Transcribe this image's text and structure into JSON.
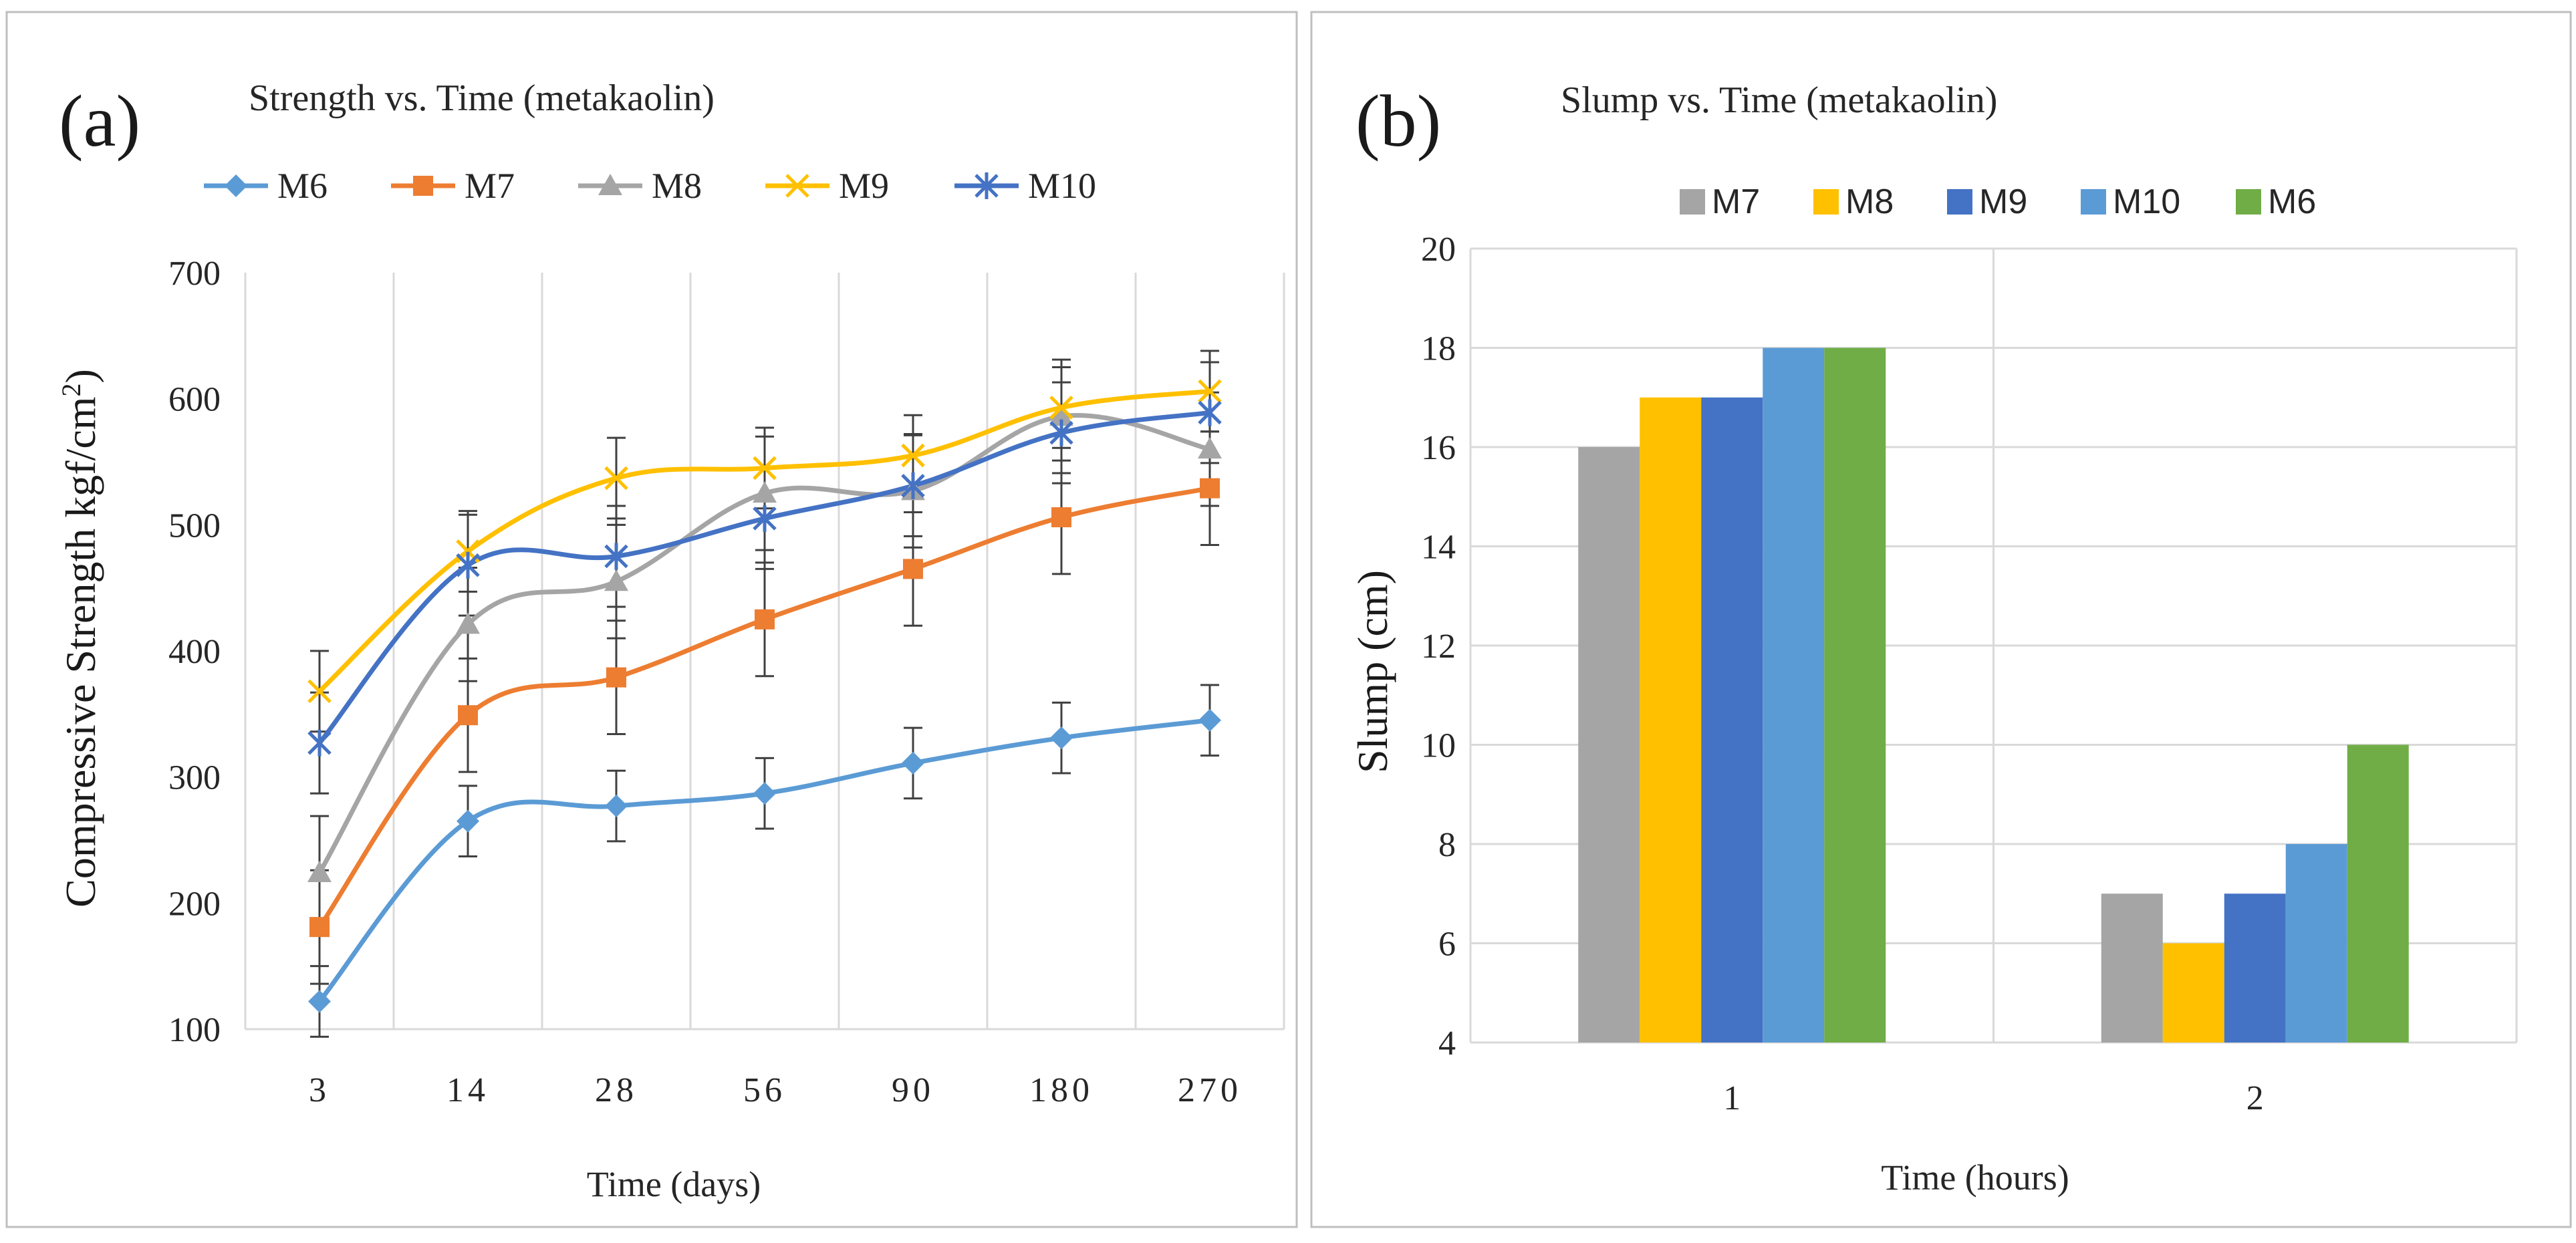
{
  "chart_data": [
    {
      "type": "line",
      "panel_label": "(a)",
      "title": "Strength vs. Time (metakaolin)",
      "xlabel": "Time  (days)",
      "ylabel_main": "Compressive Strength  kgf/cm",
      "ylabel_sup": "2",
      "ylabel_close": ")",
      "ylabel_open": "(",
      "categories": [
        "3",
        "14",
        "28",
        "56",
        "90",
        "180",
        "270"
      ],
      "ylim": [
        100,
        700
      ],
      "yticks": [
        "100",
        "200",
        "300",
        "400",
        "500",
        "600",
        "700"
      ],
      "grid": true,
      "legend": "top",
      "series": [
        {
          "name": "M6",
          "color": "#5b9bd5",
          "marker": "diamond",
          "values": [
            122,
            265,
            277,
            287,
            311,
            331,
            345
          ],
          "errors": [
            28,
            28,
            28,
            28,
            28,
            28,
            28
          ]
        },
        {
          "name": "M7",
          "color": "#ed7d31",
          "marker": "square",
          "values": [
            181,
            349,
            379,
            425,
            465,
            506,
            529
          ],
          "errors": [
            45,
            45,
            45,
            45,
            45,
            45,
            45
          ]
        },
        {
          "name": "M8",
          "color": "#a5a5a5",
          "marker": "triangle",
          "values": [
            224,
            421,
            455,
            525,
            527,
            586,
            560
          ],
          "errors": [
            45,
            45,
            45,
            45,
            45,
            45,
            45
          ]
        },
        {
          "name": "M9",
          "color": "#ffc000",
          "marker": "cross",
          "values": [
            368,
            479,
            537,
            545,
            555,
            593,
            606
          ],
          "errors": [
            32,
            32,
            32,
            32,
            32,
            32,
            32
          ]
        },
        {
          "name": "M10",
          "color": "#4472c4",
          "marker": "star",
          "values": [
            327,
            468,
            475,
            505,
            531,
            573,
            589
          ],
          "errors": [
            40,
            40,
            40,
            40,
            40,
            40,
            40
          ]
        }
      ]
    },
    {
      "type": "bar",
      "panel_label": "(b)",
      "title": "Slump vs. Time (metakaolin)",
      "xlabel": "Time  (hours)",
      "ylabel": "Slump (cm)",
      "categories": [
        "1",
        "2"
      ],
      "ylim": [
        4,
        20
      ],
      "yticks": [
        "4",
        "6",
        "8",
        "10",
        "12",
        "14",
        "16",
        "18",
        "20"
      ],
      "grid": true,
      "legend": "top",
      "series": [
        {
          "name": "M7",
          "color": "#a5a5a5",
          "values": [
            16,
            7
          ]
        },
        {
          "name": "M8",
          "color": "#ffc000",
          "values": [
            17,
            6
          ]
        },
        {
          "name": "M9",
          "color": "#4472c4",
          "values": [
            17,
            7
          ]
        },
        {
          "name": "M10",
          "color": "#5b9bd5",
          "values": [
            18,
            8
          ]
        },
        {
          "name": "M6",
          "color": "#70ad47",
          "values": [
            18,
            10
          ]
        }
      ]
    }
  ]
}
